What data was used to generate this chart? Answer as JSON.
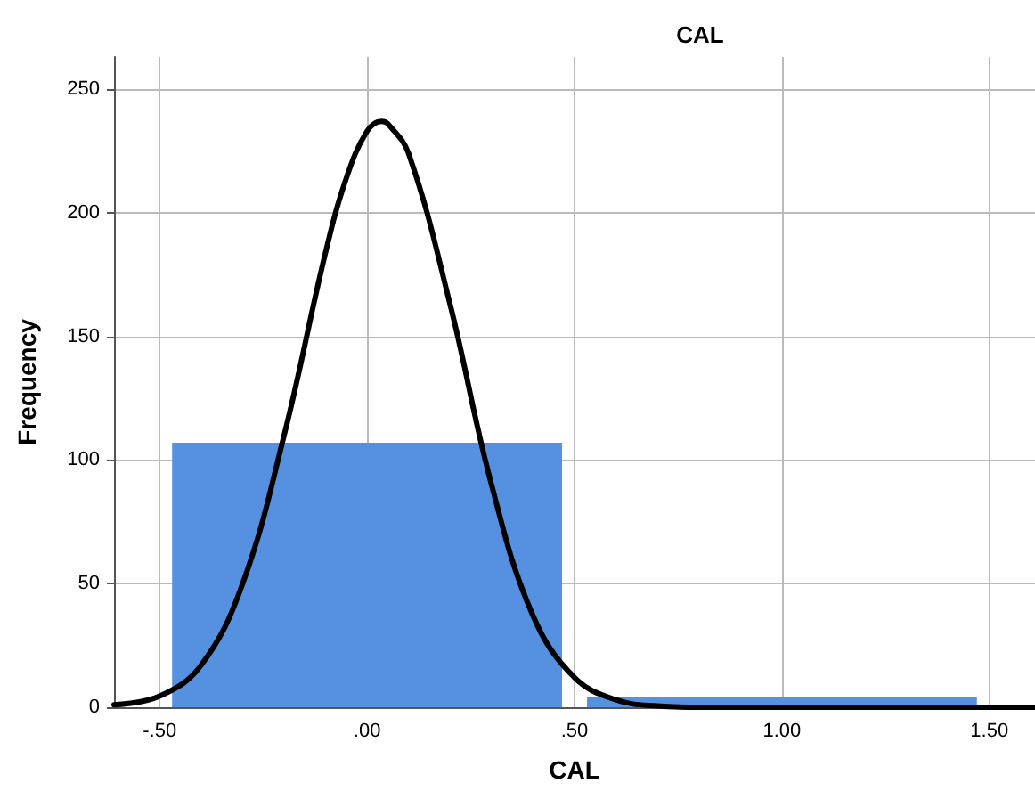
{
  "chart_data": {
    "type": "histogram",
    "title": "CAL",
    "xlabel": "CAL",
    "ylabel": "Frequency",
    "bins": [
      -0.5,
      0.5,
      1.5
    ],
    "values": [
      107,
      4
    ],
    "color": "#5591e0",
    "series": [
      {
        "type": "line",
        "color": "#000000",
        "x": [
          -0.61,
          -0.5,
          -0.4,
          -0.3,
          -0.2,
          -0.1,
          -0.05,
          0,
          0.035,
          0.05,
          0.1,
          0.2,
          0.3,
          0.4,
          0.5,
          0.6,
          0.7,
          0.8,
          1.0,
          1.2,
          1.4,
          1.61
        ],
        "values": [
          1,
          4.5,
          17,
          50,
          110,
          184,
          214,
          233,
          237,
          236,
          224,
          163,
          90,
          37,
          12,
          3,
          0.5,
          0,
          0,
          0,
          0,
          0
        ]
      }
    ],
    "xlim": [
      -0.61,
      1.61
    ],
    "ylim": [
      0,
      263
    ],
    "xticks": [
      {
        "value": -0.5,
        "label": "-.50"
      },
      {
        "value": 0,
        "label": ".00"
      },
      {
        "value": 0.5,
        "label": ".50"
      },
      {
        "value": 1,
        "label": "1.00"
      },
      {
        "value": 1.5,
        "label": "1.50"
      }
    ],
    "yticks": [
      0,
      50,
      100,
      150,
      200,
      250
    ],
    "grid": true,
    "marker": "none",
    "line_style": "solid"
  }
}
